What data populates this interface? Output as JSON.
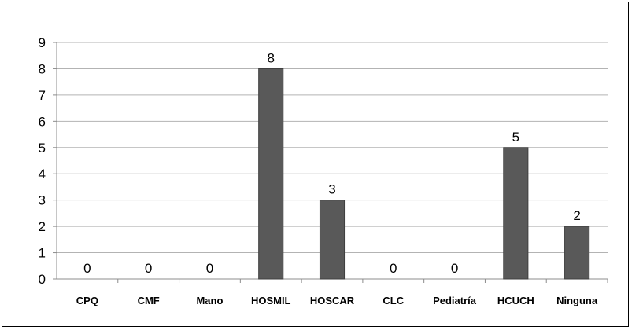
{
  "chart_data": {
    "type": "bar",
    "title": "",
    "xlabel": "",
    "ylabel": "",
    "categories": [
      "CPQ",
      "CMF",
      "Mano",
      "HOSMIL",
      "HOSCAR",
      "CLC",
      "Pediatría",
      "HCUCH",
      "Ninguna"
    ],
    "values": [
      0,
      0,
      0,
      8,
      3,
      0,
      0,
      5,
      2
    ],
    "ylim": [
      0,
      9
    ],
    "yticks": [
      0,
      1,
      2,
      3,
      4,
      5,
      6,
      7,
      8,
      9
    ],
    "grid": true,
    "legend": "none",
    "data_labels": true,
    "colors": {
      "bar": "#595959",
      "bar_edge": "#3f3f3f",
      "grid": "#b3b3b3",
      "axis": "#8c8c8c",
      "frame": "#000000"
    }
  }
}
